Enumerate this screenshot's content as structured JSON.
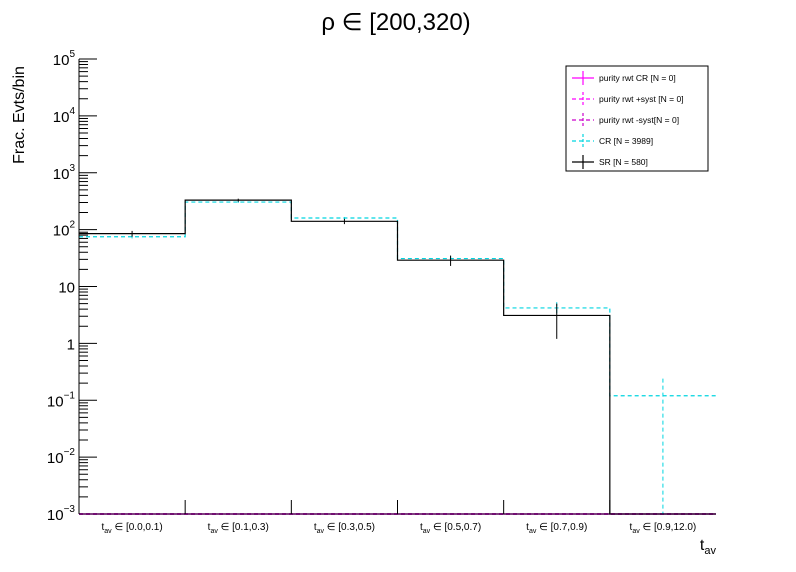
{
  "chart_data": {
    "type": "bar",
    "title": "ρ ∈ [200,320)",
    "ylabel": "Frac. Evts/bin",
    "xlabel": "t_av",
    "y_scale": "log",
    "ylim": [
      0.001,
      100000
    ],
    "y_ticks": [
      {
        "value": 0.001,
        "base": "10",
        "exp": "−3"
      },
      {
        "value": 0.01,
        "base": "10",
        "exp": "−2"
      },
      {
        "value": 0.1,
        "base": "10",
        "exp": "−1"
      },
      {
        "value": 1,
        "base": "1",
        "exp": ""
      },
      {
        "value": 10,
        "base": "10",
        "exp": ""
      },
      {
        "value": 100,
        "base": "10",
        "exp": "2"
      },
      {
        "value": 1000,
        "base": "10",
        "exp": "3"
      },
      {
        "value": 10000,
        "base": "10",
        "exp": "4"
      },
      {
        "value": 100000,
        "base": "10",
        "exp": "5"
      }
    ],
    "categories": [
      {
        "sym": "t",
        "sub": "av",
        "range": "∈ [0.0,0.1)"
      },
      {
        "sym": "t",
        "sub": "av",
        "range": "∈ [0.1,0.3)"
      },
      {
        "sym": "t",
        "sub": "av",
        "range": "∈ [0.3,0.5)"
      },
      {
        "sym": "t",
        "sub": "av",
        "range": "∈ [0.5,0.7)"
      },
      {
        "sym": "t",
        "sub": "av",
        "range": "∈ [0.7,0.9)"
      },
      {
        "sym": "t",
        "sub": "av",
        "range": "∈ [0.9,12.0)"
      }
    ],
    "series": [
      {
        "name": "purity rwt CR [N = 0]",
        "color": "#ff00ff",
        "style": "solid",
        "values": [
          0.001,
          0.001,
          0.001,
          0.001,
          0.001,
          0.001
        ],
        "errors": [
          0,
          0,
          0,
          0,
          0,
          0
        ]
      },
      {
        "name": "purity rwt +syst [N = 0]",
        "color": "#ff00ff",
        "style": "dashed",
        "values": [
          0.001,
          0.001,
          0.001,
          0.001,
          0.001,
          0.001
        ],
        "errors": [
          0,
          0,
          0,
          0,
          0,
          0
        ]
      },
      {
        "name": "purity rwt -syst[N = 0]",
        "color": "#cc00cc",
        "style": "dashed",
        "values": [
          0.001,
          0.001,
          0.001,
          0.001,
          0.001,
          0.001
        ],
        "errors": [
          0,
          0,
          0,
          0,
          0,
          0
        ]
      },
      {
        "name": "CR [N = 3989]",
        "color": "#00d5e0",
        "style": "dashed",
        "values": [
          75,
          305,
          160,
          31,
          4.2,
          0.12
        ],
        "errors": [
          5,
          10,
          7,
          3,
          1.1,
          0.12
        ]
      },
      {
        "name": "SR [N = 580]",
        "color": "#000000",
        "style": "solid",
        "values": [
          85,
          330,
          140,
          29,
          3.1,
          0
        ],
        "errors": [
          10,
          20,
          15,
          6,
          1.9,
          0
        ]
      }
    ],
    "grid": false,
    "legend_position": "top-right"
  }
}
